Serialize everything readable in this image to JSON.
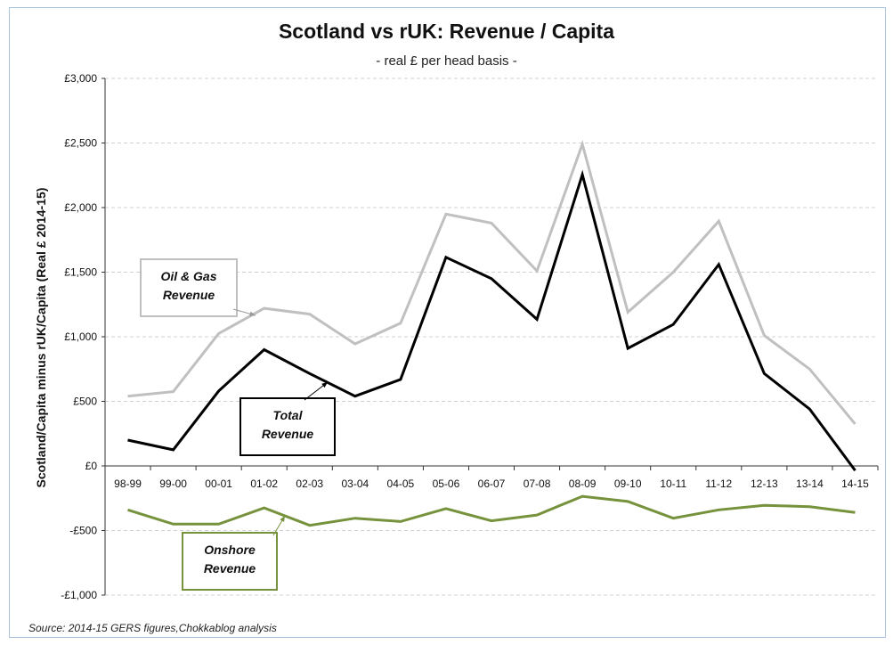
{
  "chart_data": {
    "type": "line",
    "title": "Scotland vs rUK: Revenue / Capita",
    "subtitle": "- real £ per head basis -",
    "ylabel": "Scotland/Capita minus rUK/Capita (Real £ 2014-15)",
    "xlabel": "",
    "categories": [
      "98-99",
      "99-00",
      "00-01",
      "01-02",
      "02-03",
      "03-04",
      "04-05",
      "05-06",
      "06-07",
      "07-08",
      "08-09",
      "09-10",
      "10-11",
      "11-12",
      "12-13",
      "13-14",
      "14-15"
    ],
    "ylim": [
      -1000,
      3000
    ],
    "yticks": [
      -1000,
      -500,
      0,
      500,
      1000,
      1500,
      2000,
      2500,
      3000
    ],
    "ytick_labels": [
      "-£1,000",
      "-£500",
      "£0",
      "£500",
      "£1,000",
      "£1,500",
      "£2,000",
      "£2,500",
      "£3,000"
    ],
    "grid": true,
    "series": [
      {
        "name": "Oil & Gas Revenue",
        "color": "#c0c0c0",
        "values": [
          540,
          575,
          1025,
          1220,
          1175,
          945,
          1105,
          1950,
          1880,
          1510,
          2490,
          1190,
          1500,
          1895,
          1010,
          750,
          325
        ]
      },
      {
        "name": "Total Revenue",
        "color": "#000000",
        "values": [
          200,
          125,
          580,
          900,
          715,
          540,
          670,
          1615,
          1450,
          1135,
          2255,
          910,
          1095,
          1560,
          715,
          440,
          -35
        ]
      },
      {
        "name": "Onshore Revenue",
        "color": "#76923c",
        "values": [
          -340,
          -450,
          -450,
          -325,
          -460,
          -405,
          -430,
          -330,
          -425,
          -380,
          -235,
          -275,
          -405,
          -340,
          -305,
          -315,
          -360
        ]
      }
    ],
    "annotations": [
      {
        "line1": "Oil & Gas",
        "line2": "Revenue",
        "series": "Oil & Gas Revenue"
      },
      {
        "line1": "Total",
        "line2": "Revenue",
        "series": "Total Revenue"
      },
      {
        "line1": "Onshore",
        "line2": "Revenue",
        "series": "Onshore Revenue"
      }
    ],
    "source": "Source: 2014-15 GERS figures,Chokkablog analysis"
  }
}
